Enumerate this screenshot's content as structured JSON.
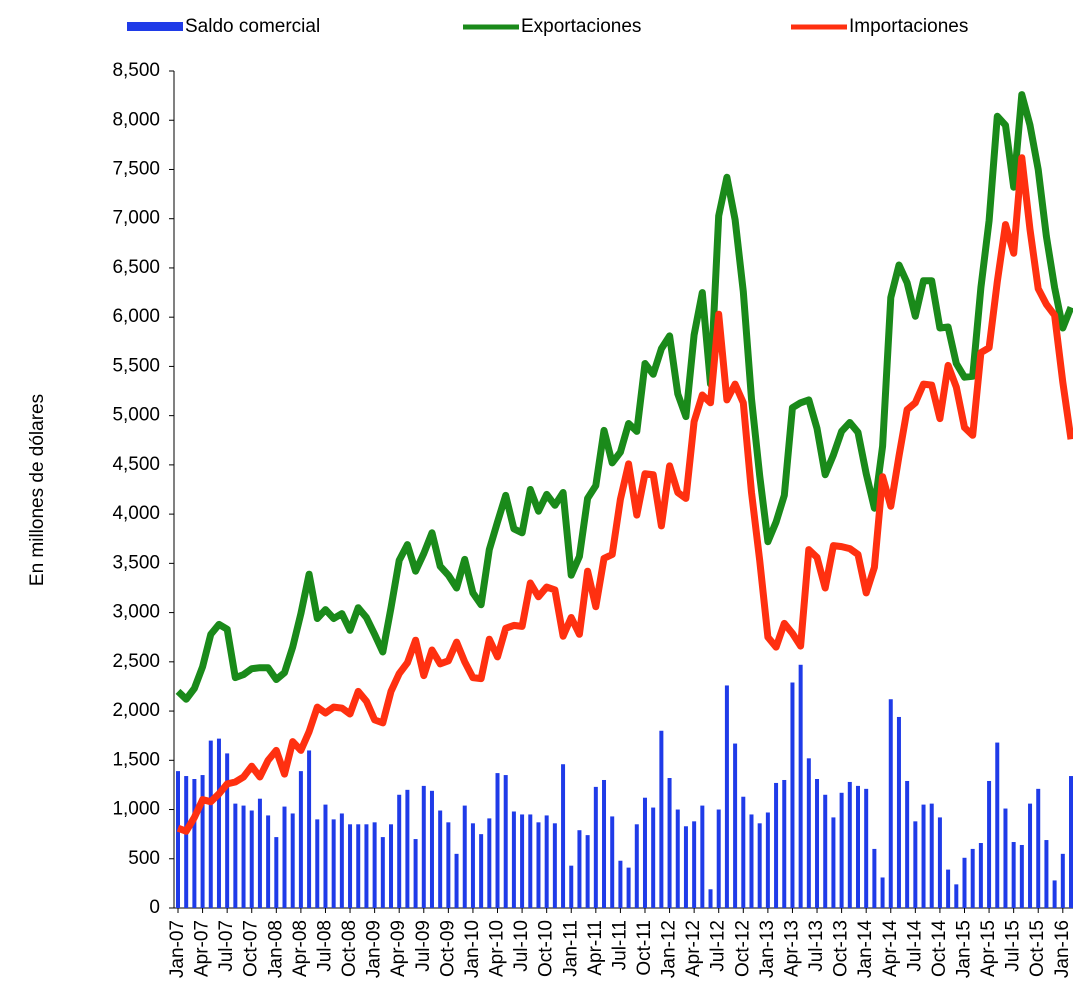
{
  "chart_data": {
    "type": "bar",
    "y_label": "En millones de dólares",
    "categories": [
      "Jan-07",
      null,
      null,
      "Apr-07",
      null,
      null,
      "Jul-07",
      null,
      null,
      "Oct-07",
      null,
      null,
      "Jan-08",
      null,
      null,
      "Apr-08",
      null,
      null,
      "Jul-08",
      null,
      null,
      "Oct-08",
      null,
      null,
      "Jan-09",
      null,
      null,
      "Apr-09",
      null,
      null,
      "Jul-09",
      null,
      null,
      "Oct-09",
      null,
      null,
      "Jan-10",
      null,
      null,
      "Apr-10",
      null,
      null,
      "Jul-10",
      null,
      null,
      "Oct-10",
      null,
      null,
      "Jan-11",
      null,
      null,
      "Apr-11",
      null,
      null,
      "Jul-11",
      null,
      null,
      "Oct-11",
      null,
      null,
      "Jan-12",
      null,
      null,
      "Apr-12",
      null,
      null,
      "Jul-12",
      null,
      null,
      "Oct-12",
      null,
      null,
      "Jan-13",
      null,
      null,
      "Apr-13",
      null,
      null,
      "Jul-13",
      null,
      null,
      "Oct-13",
      null,
      null,
      "Jan-14",
      null,
      null,
      "Apr-14",
      null,
      null,
      "Jul-14",
      null,
      null,
      "Oct-14",
      null,
      null,
      "Jan-15",
      null,
      null,
      "Apr-15",
      null,
      null,
      "Jul-15",
      null,
      null,
      "Oct-15",
      null,
      null,
      "Jan-16",
      null
    ],
    "series": [
      {
        "name": "Saldo comercial",
        "type": "bar",
        "color": "#1f3be8",
        "values": [
          1390,
          1340,
          1310,
          1350,
          1700,
          1720,
          1570,
          1060,
          1040,
          990,
          1110,
          940,
          720,
          1030,
          960,
          1390,
          1600,
          900,
          1050,
          900,
          960,
          850,
          850,
          850,
          870,
          720,
          850,
          1150,
          1200,
          700,
          1240,
          1190,
          990,
          870,
          550,
          1040,
          860,
          750,
          910,
          1370,
          1350,
          980,
          950,
          950,
          870,
          940,
          860,
          1460,
          430,
          790,
          740,
          1230,
          1300,
          930,
          480,
          410,
          850,
          1120,
          1020,
          1800,
          1320,
          1000,
          830,
          880,
          1040,
          190,
          1000,
          2260,
          1670,
          1130,
          950,
          860,
          970,
          1270,
          1300,
          2290,
          2470,
          1520,
          1310,
          1150,
          920,
          1170,
          1280,
          1240,
          1210,
          600,
          310,
          2120,
          1940,
          1290,
          880,
          1050,
          1060,
          920,
          390,
          240,
          510,
          600,
          660,
          1290,
          1680,
          1010,
          670,
          640,
          1060,
          1210,
          690,
          280,
          550,
          1340
        ]
      },
      {
        "name": "Exportaciones",
        "type": "line",
        "color": "#1a8a1a",
        "values": [
          2200,
          2120,
          2230,
          2450,
          2780,
          2880,
          2830,
          2340,
          2370,
          2430,
          2440,
          2440,
          2320,
          2390,
          2650,
          2990,
          3390,
          2940,
          3030,
          2940,
          2990,
          2820,
          3050,
          2950,
          2780,
          2600,
          3050,
          3530,
          3690,
          3420,
          3600,
          3810,
          3470,
          3380,
          3250,
          3540,
          3200,
          3080,
          3640,
          3920,
          4190,
          3850,
          3810,
          4250,
          4030,
          4200,
          4090,
          4220,
          3380,
          3570,
          4160,
          4290,
          4850,
          4520,
          4630,
          4920,
          4840,
          5530,
          5420,
          5680,
          5810,
          5220,
          4990,
          5820,
          6250,
          5320,
          7030,
          7420,
          6990,
          6260,
          5170,
          4390,
          3720,
          3920,
          4190,
          5080,
          5130,
          5160,
          4870,
          4400,
          4600,
          4840,
          4930,
          4830,
          4410,
          4060,
          4690,
          6200,
          6530,
          6350,
          6010,
          6370,
          6370,
          5890,
          5900,
          5530,
          5390,
          5400,
          6300,
          6980,
          8040,
          7950,
          7320,
          8260,
          7950,
          7500,
          6820,
          6300,
          5890,
          6100
        ]
      },
      {
        "name": "Importaciones",
        "type": "line",
        "color": "#ff3010",
        "values": [
          810,
          780,
          920,
          1100,
          1080,
          1160,
          1260,
          1280,
          1330,
          1440,
          1330,
          1500,
          1600,
          1360,
          1690,
          1600,
          1790,
          2040,
          1980,
          2040,
          2030,
          1970,
          2200,
          2100,
          1910,
          1880,
          2200,
          2380,
          2490,
          2720,
          2360,
          2620,
          2480,
          2510,
          2700,
          2500,
          2340,
          2330,
          2730,
          2550,
          2840,
          2870,
          2860,
          3300,
          3160,
          3260,
          3230,
          2760,
          2950,
          2780,
          3420,
          3060,
          3550,
          3590,
          4150,
          4510,
          3990,
          4410,
          4400,
          3880,
          4490,
          4220,
          4160,
          4940,
          5210,
          5130,
          6030,
          5160,
          5320,
          5130,
          4220,
          3530,
          2750,
          2650,
          2890,
          2790,
          2660,
          3640,
          3560,
          3250,
          3680,
          3670,
          3650,
          3590,
          3200,
          3460,
          4380,
          4080,
          4590,
          5060,
          5130,
          5320,
          5310,
          4970,
          5510,
          5290,
          4880,
          4800,
          5640,
          5690,
          6360,
          6940,
          6650,
          7620,
          6890,
          6290,
          6130,
          6020,
          5340,
          4760
        ]
      }
    ],
    "ylim": [
      0,
      8500
    ],
    "yticks": [
      0,
      500,
      {
        "value": 1000,
        "label": "1,000"
      },
      {
        "value": 1500,
        "label": "1,500"
      },
      {
        "value": 2000,
        "label": "2,000"
      },
      {
        "value": 2500,
        "label": "2,500"
      },
      {
        "value": 3000,
        "label": "3,000"
      },
      {
        "value": 3500,
        "label": "3,500"
      },
      {
        "value": 4000,
        "label": "4,000"
      },
      {
        "value": 4500,
        "label": "4,500"
      },
      {
        "value": 5000,
        "label": "5,000"
      },
      {
        "value": 5500,
        "label": "5,500"
      },
      {
        "value": 6000,
        "label": "6,000"
      },
      {
        "value": 6500,
        "label": "6,500"
      },
      {
        "value": 7000,
        "label": "7,000"
      },
      {
        "value": 7500,
        "label": "7,500"
      },
      {
        "value": 8000,
        "label": "8,000"
      },
      {
        "value": 8500,
        "label": "8,500"
      }
    ],
    "legend": "top",
    "grid": false
  }
}
